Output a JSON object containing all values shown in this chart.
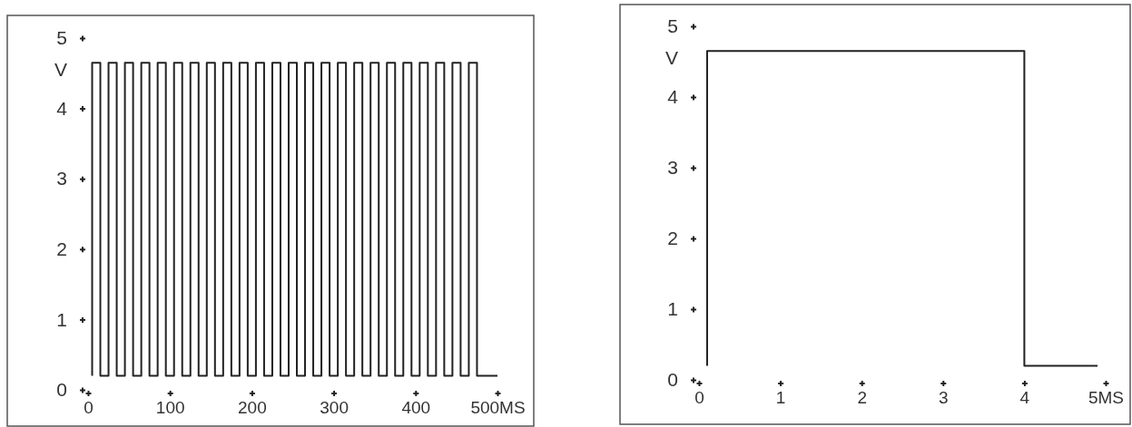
{
  "chart_data": [
    {
      "type": "step",
      "xlabel": null,
      "ylabel": "V",
      "xlim": [
        0,
        500
      ],
      "ylim": [
        0,
        5
      ],
      "xticks": [
        0,
        100,
        200,
        300,
        400,
        {
          "value": 500,
          "label": "500MS"
        }
      ],
      "yticks": [
        0,
        1,
        2,
        3,
        4,
        5
      ],
      "series": [
        {
          "color": "#222222",
          "x": [
            5,
            5,
            15,
            25,
            35,
            45,
            55,
            65,
            75,
            85,
            95,
            105,
            115,
            125,
            135,
            145,
            155,
            165,
            175,
            185,
            195,
            205,
            215,
            225,
            235,
            245,
            255,
            265,
            275,
            285,
            295,
            305,
            315,
            325,
            335,
            345,
            355,
            365,
            375,
            385,
            395,
            405,
            415,
            425,
            435,
            445,
            455,
            465,
            475,
            500
          ],
          "values": [
            0.2,
            4.65,
            0.2,
            4.65,
            0.2,
            4.65,
            0.2,
            4.65,
            0.2,
            4.65,
            0.2,
            4.65,
            0.2,
            4.65,
            0.2,
            4.65,
            0.2,
            4.65,
            0.2,
            4.65,
            0.2,
            4.65,
            0.2,
            4.65,
            0.2,
            4.65,
            0.2,
            4.65,
            0.2,
            4.65,
            0.2,
            4.65,
            0.2,
            4.65,
            0.2,
            4.65,
            0.2,
            4.65,
            0.2,
            4.65,
            0.2,
            4.65,
            0.2,
            4.65,
            0.2,
            4.65,
            0.2,
            4.65,
            0.2,
            0.2
          ]
        }
      ]
    },
    {
      "type": "step",
      "ylabel": "V",
      "xlim": [
        0,
        5
      ],
      "ylim": [
        0,
        5
      ],
      "xticks": [
        0,
        1,
        2,
        3,
        4,
        {
          "value": 5,
          "label": "5MS"
        }
      ],
      "yticks": [
        0,
        1,
        2,
        3,
        4,
        5
      ],
      "series": [
        {
          "color": "#222222",
          "x": [
            0.1,
            0.1,
            4,
            4.9
          ],
          "values": [
            0.2,
            4.65,
            0.2,
            0.2
          ]
        }
      ]
    }
  ]
}
